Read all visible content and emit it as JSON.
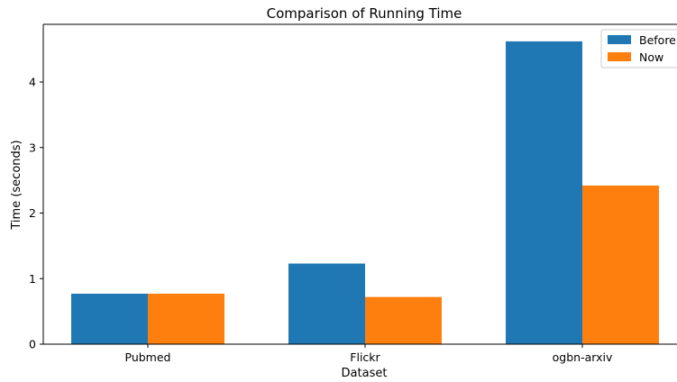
{
  "chart_data": {
    "type": "bar",
    "title": "Comparison of Running Time",
    "xlabel": "Dataset",
    "ylabel": "Time (seconds)",
    "categories": [
      "Pubmed",
      "Flickr",
      "ogbn-arxiv"
    ],
    "series": [
      {
        "name": "Before",
        "color": "#1f77b4",
        "values": [
          0.77,
          1.23,
          4.62
        ]
      },
      {
        "name": "Now",
        "color": "#ff7f0e",
        "values": [
          0.77,
          0.72,
          2.42
        ]
      }
    ],
    "ylim": [
      0,
      4.88
    ],
    "yticks": [
      0,
      1,
      2,
      3,
      4
    ],
    "grid": false,
    "legend_position": "top-right"
  }
}
